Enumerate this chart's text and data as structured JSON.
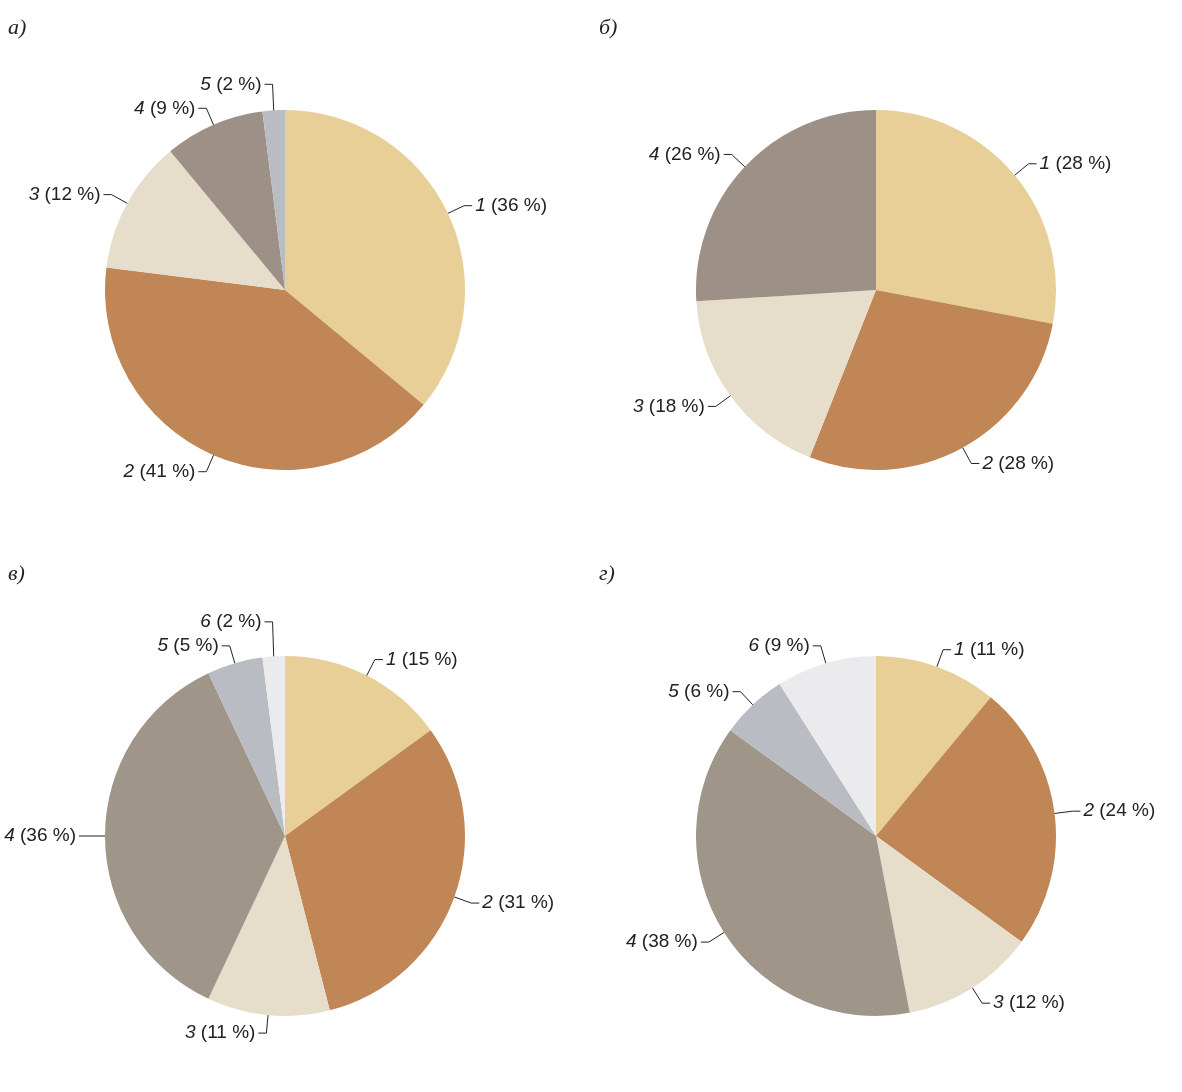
{
  "chart_data": [
    {
      "type": "pie",
      "title": "а)",
      "categories": [
        "1",
        "2",
        "3",
        "4",
        "5"
      ],
      "values": [
        36,
        41,
        12,
        9,
        2
      ],
      "value_labels": [
        "(36 %)",
        "(41 %)",
        "(12 %)",
        "(9 %)",
        "(2 %)"
      ],
      "colors": [
        "#e8cf98",
        "#c08656",
        "#e6ddcb",
        "#9c9087",
        "#b9bcc2"
      ],
      "legend": false
    },
    {
      "type": "pie",
      "title": "б)",
      "categories": [
        "1",
        "2",
        "3",
        "4"
      ],
      "values": [
        28,
        28,
        18,
        26
      ],
      "value_labels": [
        "(28 %)",
        "(28 %)",
        "(18 %)",
        "(26 %)"
      ],
      "colors": [
        "#e8cf98",
        "#c08656",
        "#e6ddcb",
        "#9c9087"
      ],
      "legend": false
    },
    {
      "type": "pie",
      "title": "в)",
      "categories": [
        "1",
        "2",
        "3",
        "4",
        "5",
        "6"
      ],
      "values": [
        15,
        31,
        11,
        36,
        5,
        2
      ],
      "value_labels": [
        "(15 %)",
        "(31 %)",
        "(11 %)",
        "(36 %)",
        "(5 %)",
        "(2 %)"
      ],
      "colors": [
        "#e8cf98",
        "#c08656",
        "#e6ddcb",
        "#a09589",
        "#b9bcc2",
        "#ebebee"
      ],
      "legend": false
    },
    {
      "type": "pie",
      "title": "г)",
      "categories": [
        "1",
        "2",
        "3",
        "4",
        "5",
        "6"
      ],
      "values": [
        11,
        24,
        12,
        38,
        6,
        9
      ],
      "value_labels": [
        "(11 %)",
        "(24 %)",
        "(12 %)",
        "(38 %)",
        "(6 %)",
        "(9 %)"
      ],
      "colors": [
        "#e8cf98",
        "#c08656",
        "#e6ddcb",
        "#a09589",
        "#b9bcc2",
        "#ebebee"
      ],
      "legend": false
    }
  ]
}
